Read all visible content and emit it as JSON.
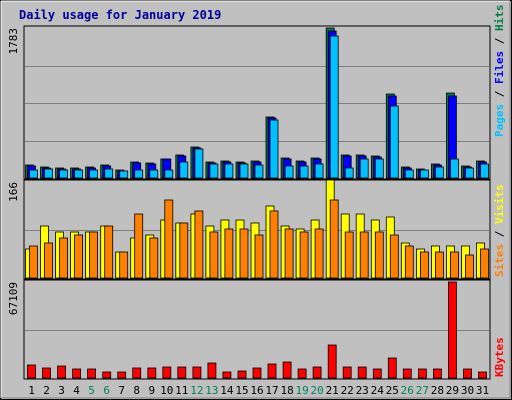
{
  "chart_data": {
    "type": "bar",
    "title": "Daily usage for January 2019",
    "categories": [
      "1",
      "2",
      "3",
      "4",
      "5",
      "6",
      "7",
      "8",
      "9",
      "10",
      "11",
      "12",
      "13",
      "14",
      "15",
      "16",
      "17",
      "18",
      "19",
      "20",
      "21",
      "22",
      "23",
      "24",
      "25",
      "26",
      "27",
      "28",
      "29",
      "30",
      "31"
    ],
    "weekend_days": [
      5,
      6,
      12,
      13,
      19,
      20,
      26,
      27
    ],
    "panels": [
      {
        "name": "hits-files-pages",
        "ymax_label": "1783",
        "ymax": 1783,
        "right_labels": [
          "Pages",
          "Files",
          "Hits"
        ],
        "series": [
          {
            "name": "Hits",
            "color": "#008040",
            "values": [
              150,
              130,
              115,
              120,
              130,
              150,
              90,
              190,
              180,
              230,
              270,
              370,
              190,
              200,
              190,
              200,
              720,
              240,
              200,
              240,
              1783,
              270,
              270,
              260,
              1000,
              130,
              110,
              170,
              1010,
              140,
              200
            ]
          },
          {
            "name": "Files",
            "color": "#0000ff",
            "values": [
              140,
              120,
              105,
              110,
              120,
              140,
              80,
              180,
              170,
              220,
              260,
              360,
              180,
              190,
              180,
              190,
              710,
              230,
              190,
              230,
              1750,
              260,
              260,
              250,
              970,
              120,
              100,
              160,
              980,
              130,
              190
            ]
          },
          {
            "name": "Pages",
            "color": "#00c0ff",
            "values": [
              90,
              110,
              100,
              90,
              100,
              110,
              80,
              100,
              100,
              100,
              190,
              340,
              170,
              170,
              170,
              160,
              690,
              140,
              140,
              170,
              1690,
              120,
              230,
              220,
              860,
              100,
              90,
              130,
              220,
              120,
              170
            ]
          }
        ]
      },
      {
        "name": "visits-sites",
        "ymax_label": "166",
        "ymax": 166,
        "right_labels": [
          "Sites",
          "Visits"
        ],
        "series": [
          {
            "name": "Visits",
            "color": "#ffff00",
            "values": [
              50,
              90,
              80,
              80,
              80,
              90,
              45,
              70,
              75,
              100,
              95,
              110,
              90,
              100,
              100,
              95,
              125,
              90,
              85,
              100,
              170,
              110,
              110,
              100,
              105,
              60,
              50,
              55,
              55,
              55,
              60
            ]
          },
          {
            "name": "Sites",
            "color": "#ff8000",
            "values": [
              55,
              60,
              70,
              75,
              80,
              90,
              45,
              110,
              70,
              135,
              95,
              115,
              80,
              85,
              85,
              75,
              115,
              85,
              80,
              85,
              135,
              80,
              80,
              80,
              75,
              55,
              45,
              45,
              45,
              40,
              50
            ]
          }
        ]
      },
      {
        "name": "kbytes",
        "ymax_label": "67109",
        "ymax": 67109,
        "right_labels": [
          "KBytes"
        ],
        "series": [
          {
            "name": "KBytes",
            "color": "#ff0000",
            "values": [
              9000,
              7000,
              8500,
              6500,
              6000,
              4500,
              4500,
              7000,
              7000,
              8000,
              7500,
              7500,
              10500,
              4500,
              5000,
              7000,
              10000,
              11000,
              6500,
              7500,
              23000,
              7500,
              7500,
              6000,
              14000,
              6000,
              6000,
              6000,
              67109,
              6500,
              4500
            ]
          }
        ]
      }
    ]
  }
}
